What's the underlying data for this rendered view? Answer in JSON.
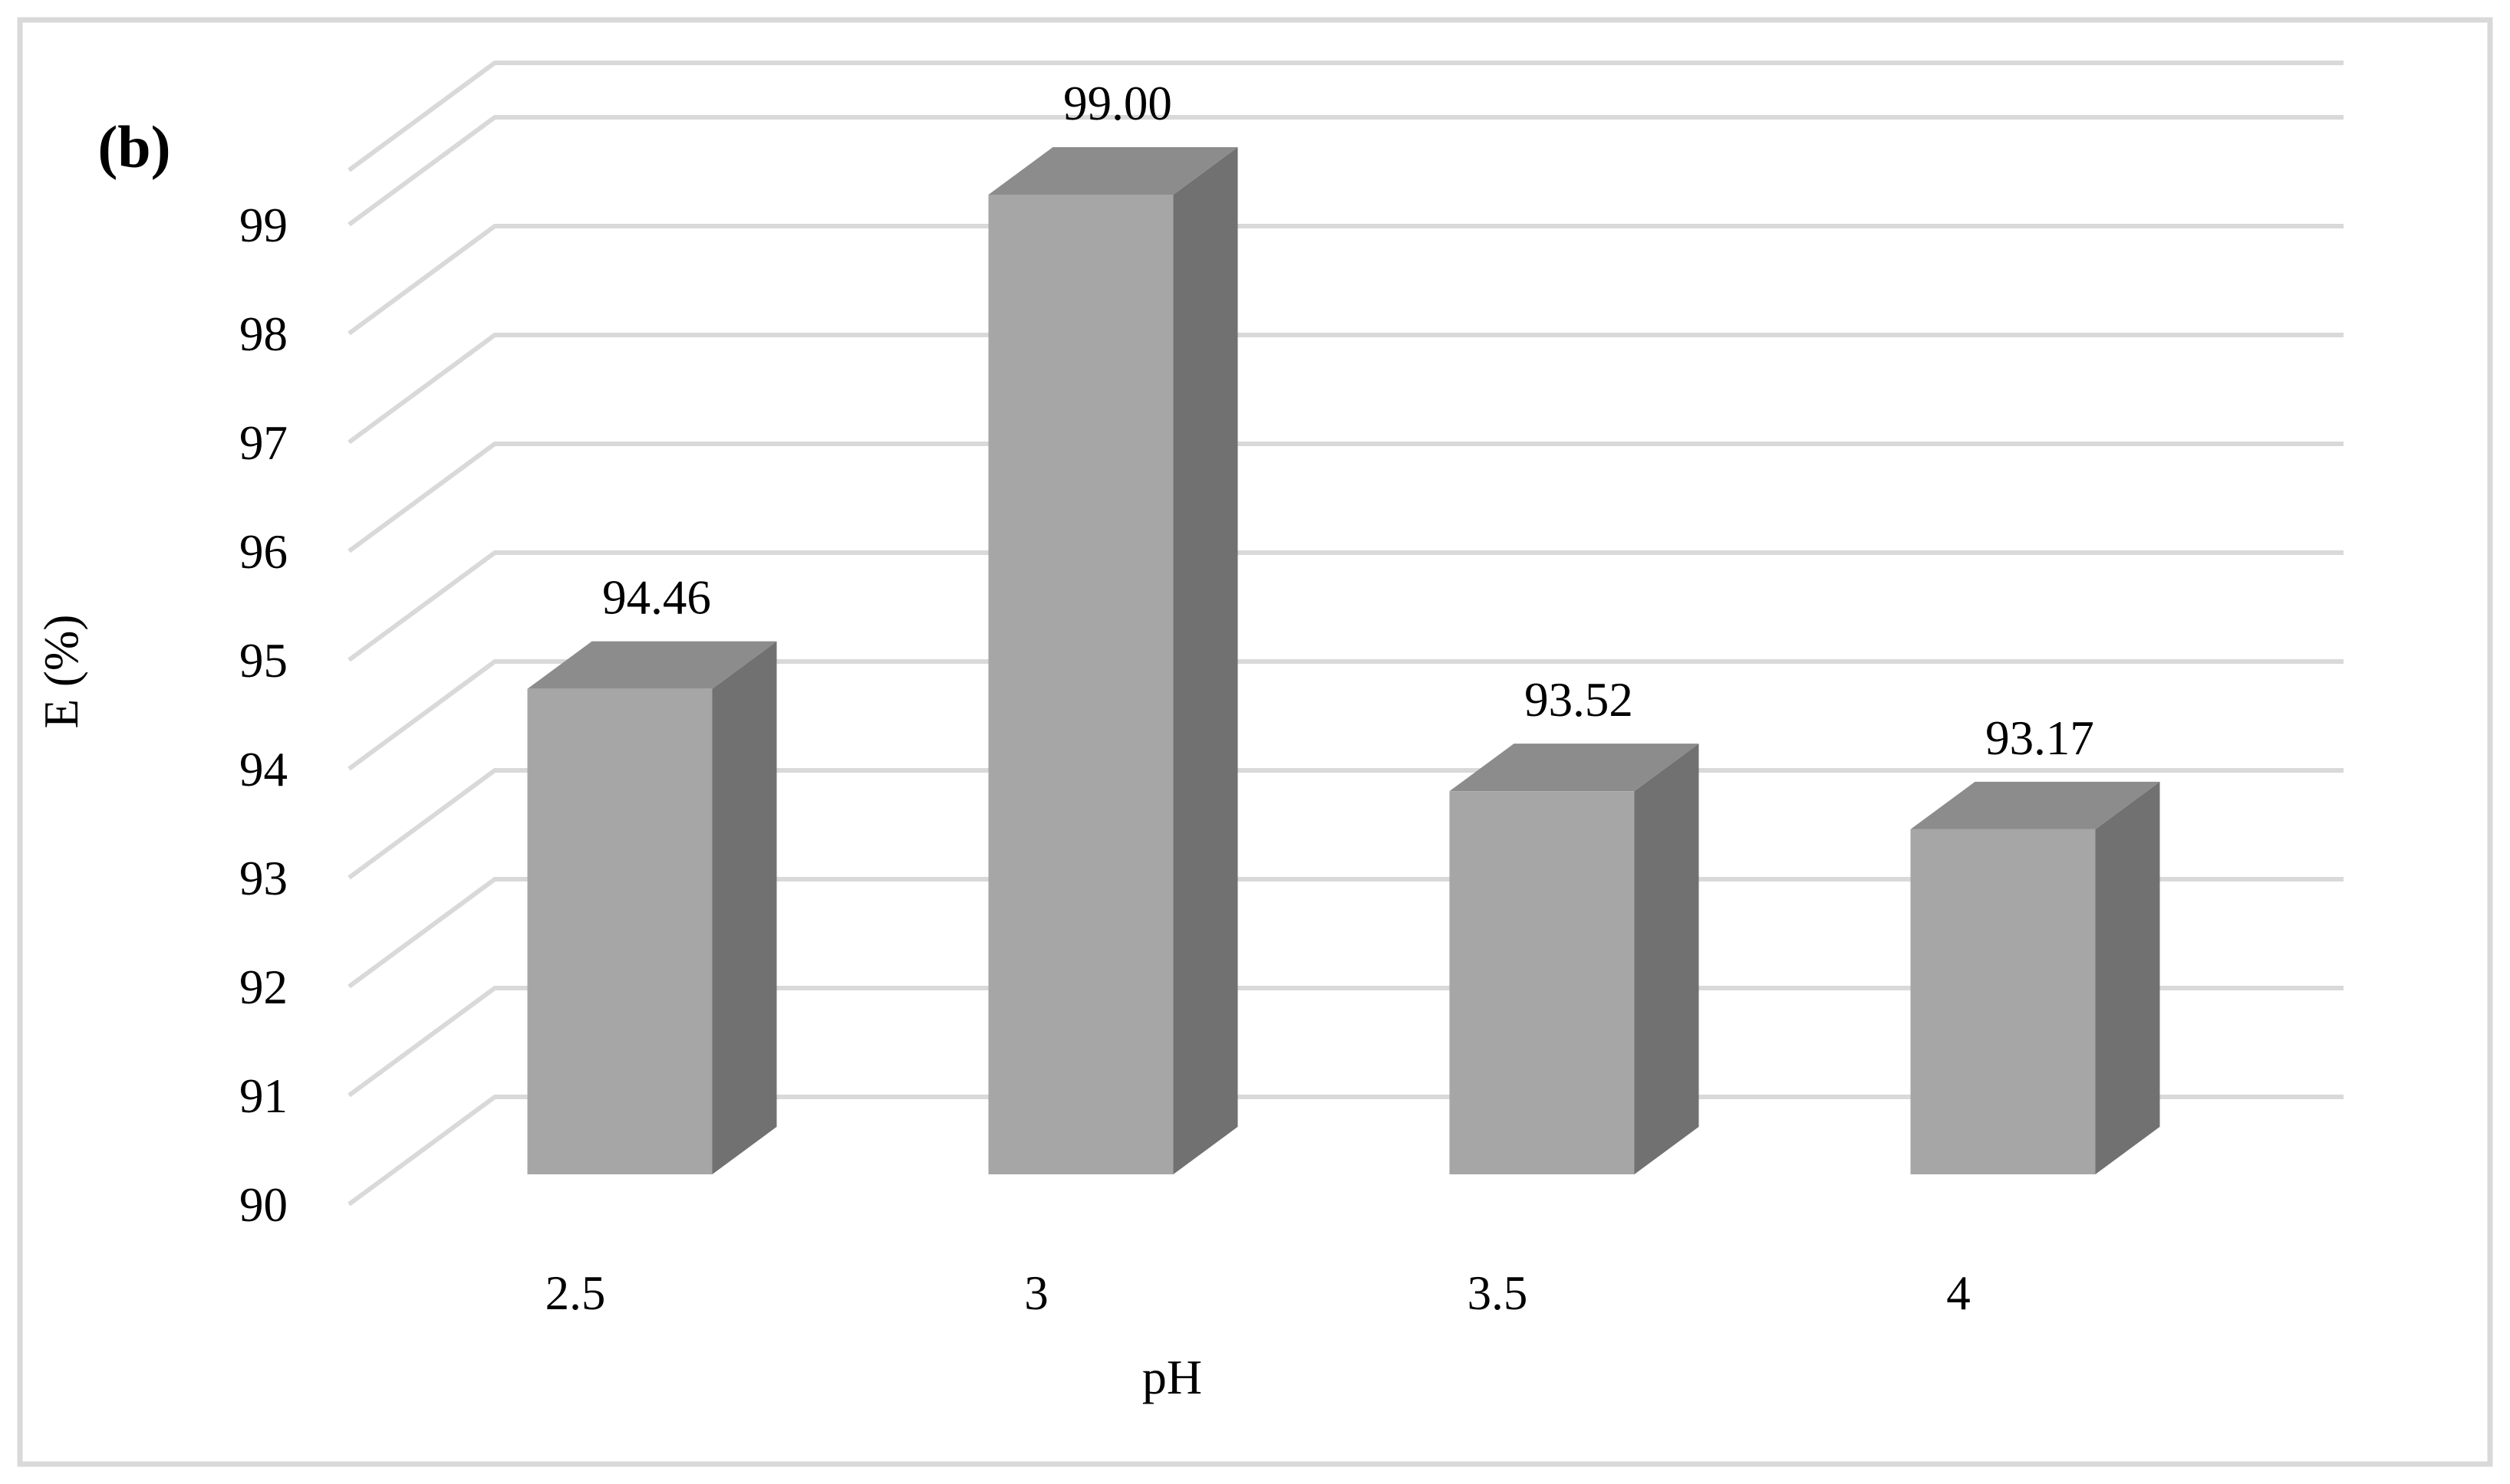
{
  "figure_label": "(b)",
  "colors": {
    "bar_front": "#a6a6a6",
    "bar_top": "#8c8c8c",
    "bar_side": "#717171",
    "gridline": "#d9d9d9",
    "frame": "#d9d9d9",
    "text": "#000000",
    "background": "#ffffff"
  },
  "chart_data": {
    "type": "bar",
    "style": "3d-column",
    "title": "",
    "categories": [
      "2.5",
      "3",
      "3.5",
      "4"
    ],
    "values": [
      94.46,
      99.0,
      93.52,
      93.17
    ],
    "data_labels": [
      "94.46",
      "99.00",
      "93.52",
      "93.17"
    ],
    "xlabel": "pH",
    "ylabel": "E (%)",
    "ylim": [
      90,
      99.5
    ],
    "ytick_step": 1,
    "ytick_labels": [
      "99",
      "98",
      "97",
      "96",
      "95",
      "94",
      "93",
      "92",
      "91",
      "90"
    ],
    "grid": true,
    "legend": false
  }
}
